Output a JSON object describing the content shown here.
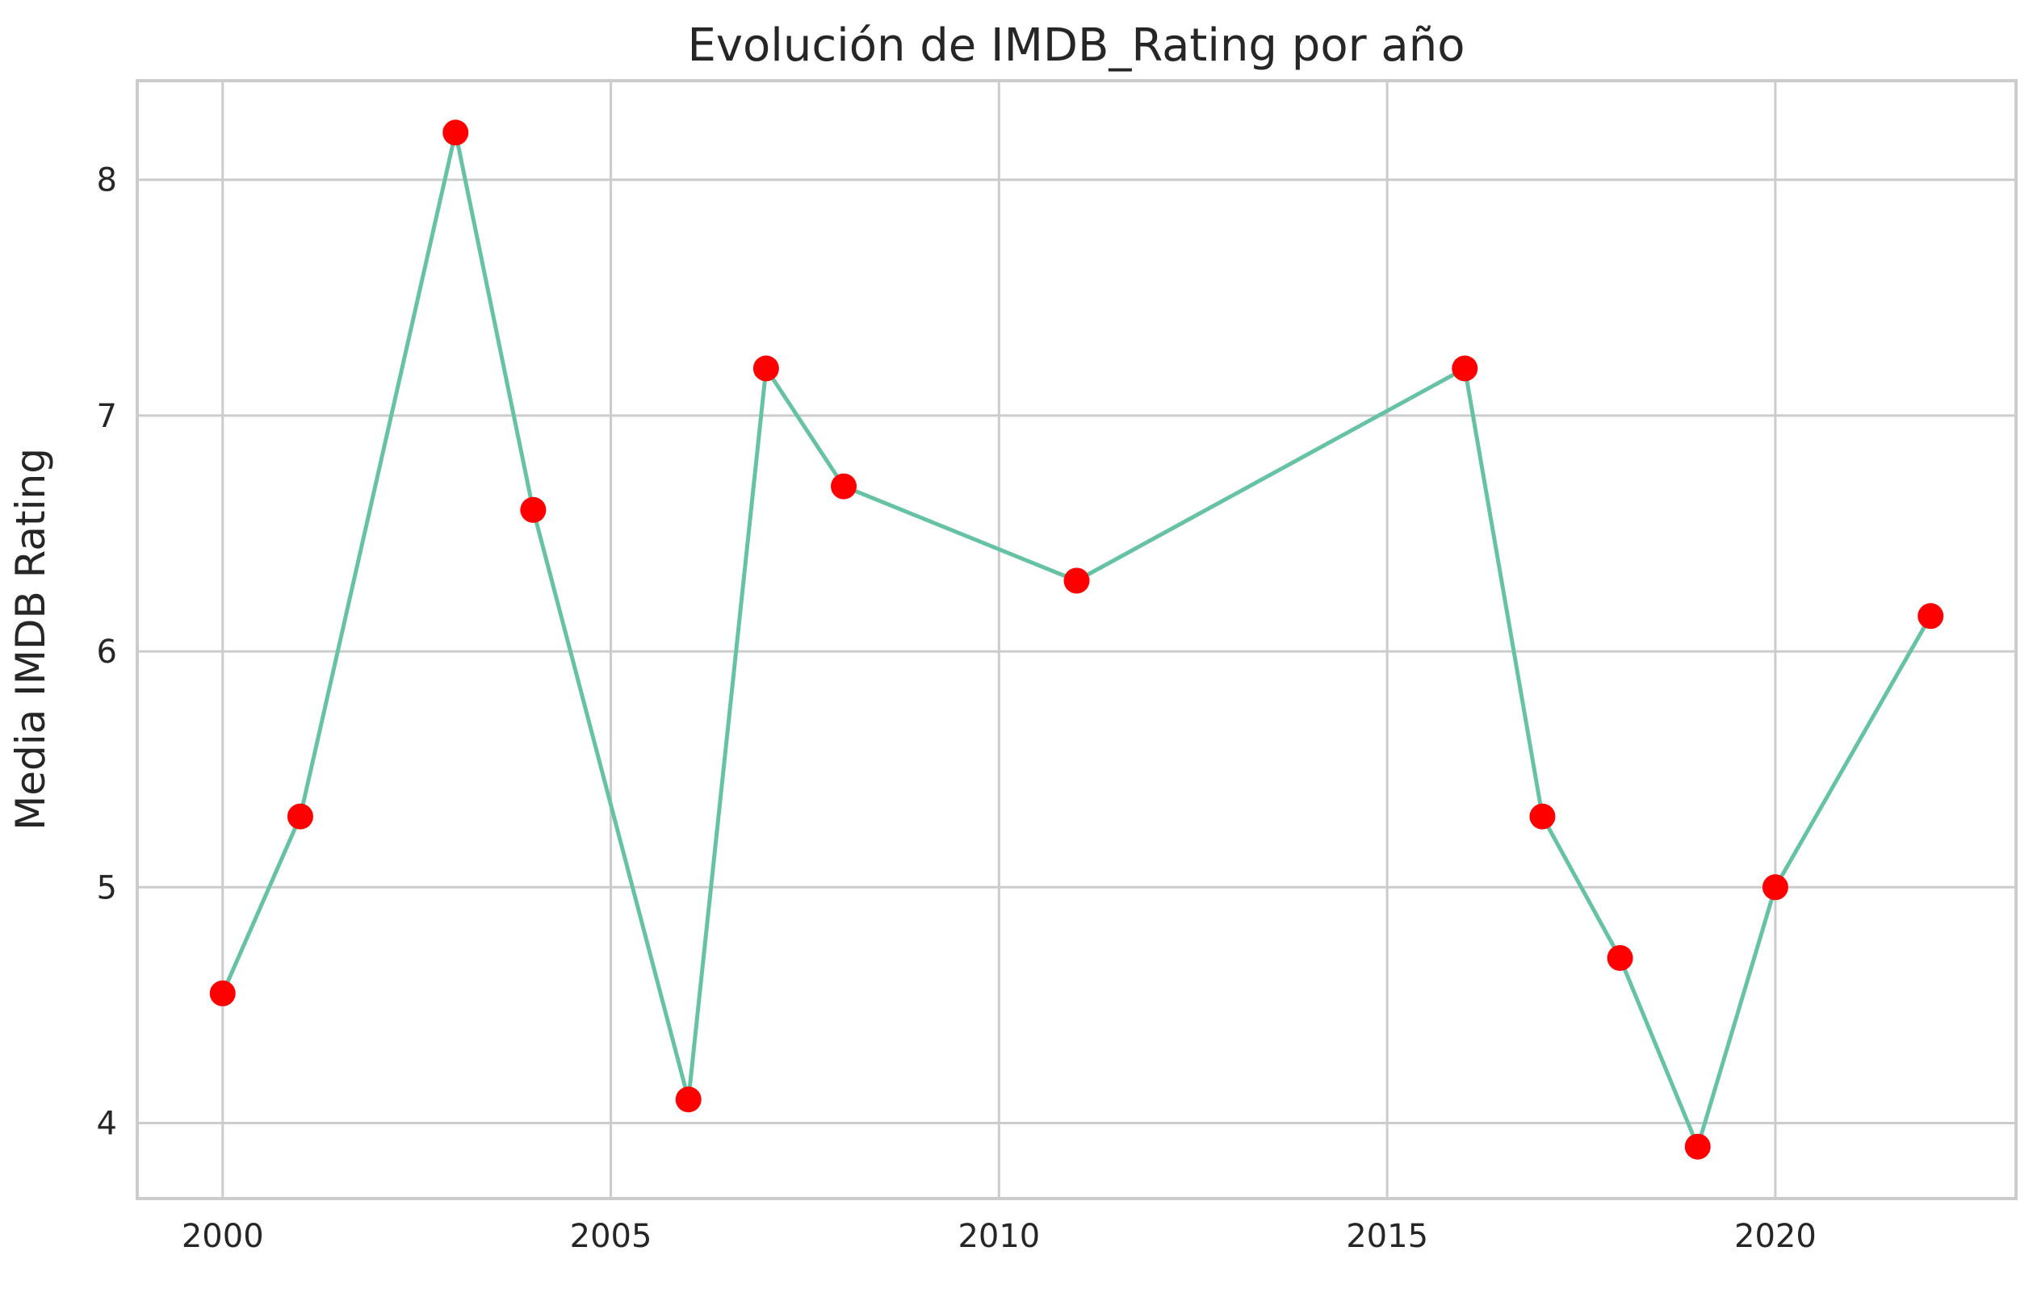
{
  "colors": {
    "line": "#66c2a5",
    "marker": "#ff0000",
    "grid": "#cccccc",
    "text": "#262626",
    "background": "#ffffff"
  },
  "chart_data": {
    "type": "line",
    "title": "Evolución de IMDB_Rating por año",
    "xlabel": "",
    "ylabel": "Media IMDB Rating",
    "xlim": [
      1998.9,
      2023.1
    ],
    "ylim": [
      3.68,
      8.42
    ],
    "xticks": [
      2000,
      2005,
      2010,
      2015,
      2020
    ],
    "yticks": [
      4,
      5,
      6,
      7,
      8
    ],
    "grid": true,
    "legend": "none",
    "series": [
      {
        "x": [
          2000,
          2001,
          2003,
          2004,
          2006,
          2007,
          2008,
          2011,
          2016,
          2017,
          2018,
          2019,
          2020,
          2022
        ],
        "y": [
          4.55,
          5.3,
          8.2,
          6.6,
          4.1,
          7.2,
          6.7,
          6.3,
          7.2,
          5.3,
          4.7,
          3.9,
          5.0,
          6.15
        ]
      }
    ]
  }
}
